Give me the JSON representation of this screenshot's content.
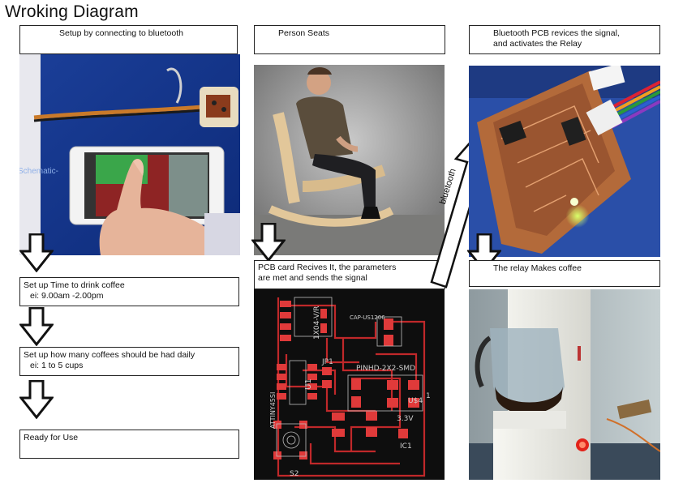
{
  "title": "Wroking Diagram",
  "columns": {
    "left": {
      "step1": "Setup by connecting to bluetooth",
      "step2_line1": "Set up Time to drink coffee",
      "step2_line2": "ei: 9.00am -2.00pm",
      "step3_line1": "Set up how many coffees should be had daily",
      "step3_line2": "ei: 1 to 5 cups",
      "step4": "Ready for Use",
      "phone_overlay_text": "Schematic-"
    },
    "middle": {
      "step1": "Person Seats",
      "step2_line1": "PCB card Recives It, the parameters",
      "step2_line2": "are met and sends the signal",
      "pcb_labels": {
        "cap": "CAP-US1206",
        "part": "1X04-V/R",
        "jp1": "JP1",
        "u1": "U1",
        "attiny": "ATTINY45SI",
        "pinhd": "PINHD-2X2-SMD",
        "u4": "U$4",
        "v33": "3.3V",
        "ic1": "IC1",
        "s2": "S2",
        "one": "1"
      }
    },
    "right": {
      "step1_line1": "Bluetooth PCB revices the signal,",
      "step1_line2": "and activates the Relay",
      "step2": "The relay Makes coffee"
    }
  },
  "arrow_label": "bluetooth"
}
